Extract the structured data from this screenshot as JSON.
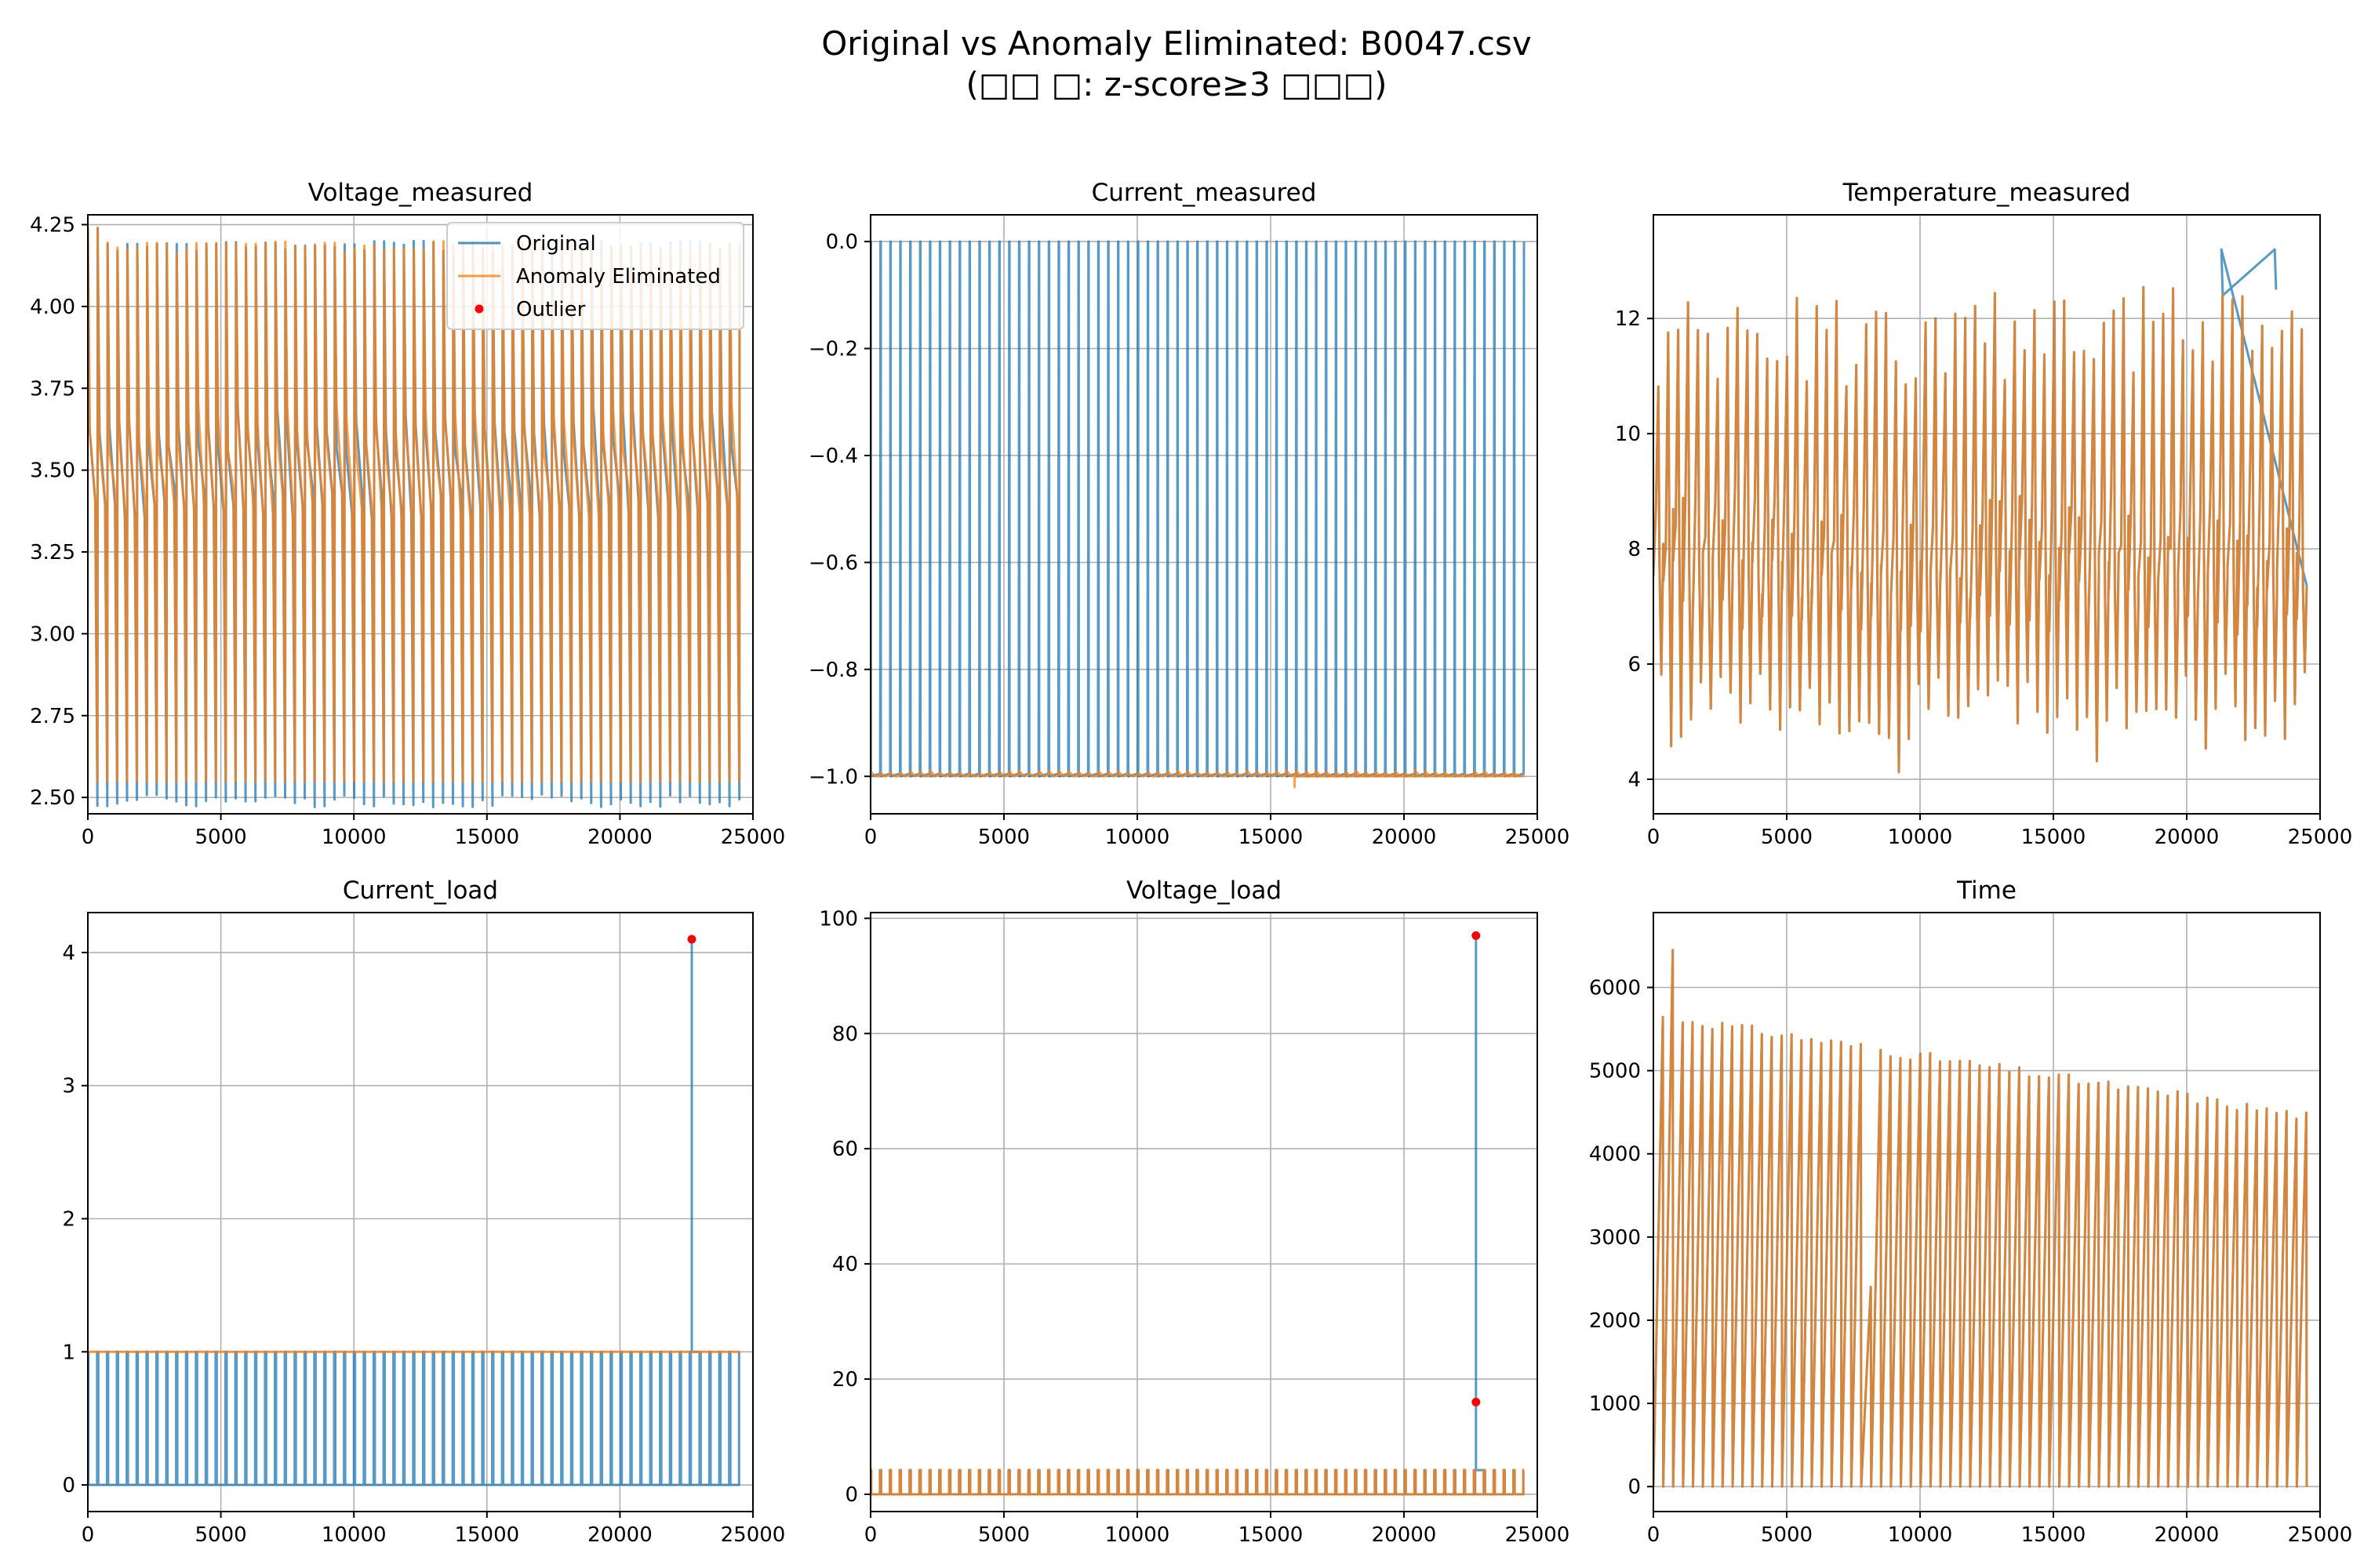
{
  "figure": {
    "title_line1": "Original vs Anomaly Eliminated: B0047.csv",
    "title_line2": "(□□ □: z-score≥3 □□□)"
  },
  "colors": {
    "original": "#1f77b4",
    "eliminated": "#ff7f0e",
    "outlier": "#ff0000",
    "grid": "#b0b0b0"
  },
  "legend": {
    "placement": "top-right of first panel",
    "entries": [
      "Original",
      "Anomaly Eliminated",
      "Outlier"
    ]
  },
  "chart_data": [
    {
      "type": "line",
      "title": "Voltage_measured",
      "xlim": [
        0,
        25000
      ],
      "ylim": [
        2.45,
        4.28
      ],
      "xticks": [
        0,
        5000,
        10000,
        15000,
        20000,
        25000
      ],
      "yticks": [
        2.5,
        2.75,
        3.0,
        3.25,
        3.5,
        3.75,
        4.0,
        4.25
      ],
      "ytick_labels": [
        "2.50",
        "2.75",
        "3.00",
        "3.25",
        "3.50",
        "3.75",
        "4.00",
        "4.25"
      ],
      "grid": true,
      "cycle_count": 66,
      "x_end": 24500,
      "series": [
        {
          "name": "Original",
          "cycle_peak": 4.2,
          "cycle_floor": 2.48
        },
        {
          "name": "Anomaly Eliminated",
          "cycle_peak": 4.2,
          "cycle_floor": 2.55
        }
      ],
      "outliers": []
    },
    {
      "type": "line",
      "title": "Current_measured",
      "xlim": [
        0,
        25000
      ],
      "ylim": [
        -1.07,
        0.05
      ],
      "xticks": [
        0,
        5000,
        10000,
        15000,
        20000,
        25000
      ],
      "yticks": [
        -1.0,
        -0.8,
        -0.6,
        -0.4,
        -0.2,
        0.0
      ],
      "ytick_labels": [
        "−1.0",
        "−0.8",
        "−0.6",
        "−0.4",
        "−0.2",
        "0.0"
      ],
      "grid": true,
      "cycle_count": 66,
      "x_end": 24500,
      "series": [
        {
          "name": "Original",
          "high": 0.0,
          "low": -1.0
        },
        {
          "name": "Anomaly Eliminated",
          "high": -0.99,
          "low": -1.0
        }
      ],
      "outliers": []
    },
    {
      "type": "line",
      "title": "Temperature_measured",
      "xlim": [
        0,
        25000
      ],
      "ylim": [
        3.4,
        13.8
      ],
      "xticks": [
        0,
        5000,
        10000,
        15000,
        20000,
        25000
      ],
      "yticks": [
        4,
        6,
        8,
        10,
        12
      ],
      "ytick_labels": [
        "4",
        "6",
        "8",
        "10",
        "12"
      ],
      "grid": true,
      "cycle_count": 66,
      "x_end": 24500,
      "series": [
        {
          "name": "Original",
          "range": [
            3.9,
            13.2
          ]
        },
        {
          "name": "Anomaly Eliminated",
          "range": [
            3.9,
            12.8
          ]
        }
      ],
      "outliers": []
    },
    {
      "type": "line",
      "title": "Current_load",
      "xlim": [
        0,
        25000
      ],
      "ylim": [
        -0.2,
        4.3
      ],
      "xticks": [
        0,
        5000,
        10000,
        15000,
        20000,
        25000
      ],
      "yticks": [
        0,
        1,
        2,
        3,
        4
      ],
      "ytick_labels": [
        "0",
        "1",
        "2",
        "3",
        "4"
      ],
      "grid": true,
      "cycle_count": 66,
      "x_end": 24500,
      "series": [
        {
          "name": "Original",
          "high": 1.0,
          "low": 0.0
        },
        {
          "name": "Anomaly Eliminated",
          "high": 1.0,
          "low": 1.0
        }
      ],
      "outliers": [
        {
          "x": 22700,
          "y": 4.1
        }
      ]
    },
    {
      "type": "line",
      "title": "Voltage_load",
      "xlim": [
        0,
        25000
      ],
      "ylim": [
        -3,
        101
      ],
      "xticks": [
        0,
        5000,
        10000,
        15000,
        20000,
        25000
      ],
      "yticks": [
        0,
        20,
        40,
        60,
        80,
        100
      ],
      "ytick_labels": [
        "0",
        "20",
        "40",
        "60",
        "80",
        "100"
      ],
      "grid": true,
      "cycle_count": 66,
      "x_end": 24500,
      "series": [
        {
          "name": "Original",
          "high": 4.2,
          "low": 0.0
        },
        {
          "name": "Anomaly Eliminated",
          "high": 4.2,
          "low": 0.0
        }
      ],
      "outliers": [
        {
          "x": 22700,
          "y": 97
        },
        {
          "x": 22700,
          "y": 16
        }
      ]
    },
    {
      "type": "line",
      "title": "Time",
      "xlim": [
        0,
        25000
      ],
      "ylim": [
        -300,
        6900
      ],
      "xticks": [
        0,
        5000,
        10000,
        15000,
        20000,
        25000
      ],
      "yticks": [
        0,
        1000,
        2000,
        3000,
        4000,
        5000,
        6000
      ],
      "ytick_labels": [
        "0",
        "1000",
        "2000",
        "3000",
        "4000",
        "5000",
        "6000"
      ],
      "grid": true,
      "cycle_count": 66,
      "x_end": 24500,
      "series": [
        {
          "name": "Original",
          "peak_start": 5650,
          "peak_end": 4450
        },
        {
          "name": "Anomaly Eliminated",
          "peak_start": 5650,
          "peak_end": 4450
        }
      ],
      "outliers": []
    }
  ]
}
